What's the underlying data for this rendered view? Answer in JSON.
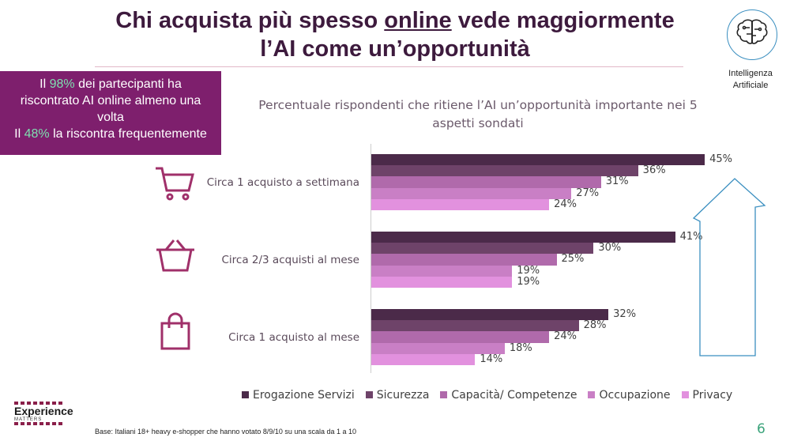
{
  "title": {
    "part1": "Chi acquista più spesso ",
    "underlined": "online",
    "part2": " vede maggiormente",
    "line2": "l’AI come un’opportunità"
  },
  "callout": {
    "l1a": "Il ",
    "l1b": "98%",
    "l1c": " dei partecipanti ha",
    "l2": "riscontrato AI online almeno una",
    "l3": "volta",
    "l4a": "Il ",
    "l4b": "48%",
    "l4c": " la riscontra frequentemente"
  },
  "badge": {
    "icon": "brain-circuit-icon",
    "label1": "Intelligenza",
    "label2": "Artificiale"
  },
  "chart_data": {
    "type": "bar",
    "orientation": "horizontal",
    "title": "Percentuale rispondenti che ritiene l’AI un’opportunità importante nei 5 aspetti sondati",
    "categories": [
      "Circa 1 acquisto a settimana",
      "Circa 2/3 acquisti al mese",
      "Circa 1 acquisto al mese"
    ],
    "category_icons": [
      "shopping-cart-icon",
      "shopping-basket-icon",
      "shopping-bag-icon"
    ],
    "series": [
      {
        "name": "Erogazione Servizi",
        "color": "#4b2a49",
        "values": [
          45,
          41,
          32
        ]
      },
      {
        "name": "Sicurezza",
        "color": "#6e4369",
        "values": [
          36,
          30,
          28
        ]
      },
      {
        "name": "Capacità/ Competenze",
        "color": "#b06aab",
        "values": [
          31,
          25,
          24
        ]
      },
      {
        "name": "Occupazione",
        "color": "#c97fc5",
        "values": [
          27,
          19,
          18
        ]
      },
      {
        "name": "Privacy",
        "color": "#e291de",
        "values": [
          24,
          19,
          14
        ]
      }
    ],
    "value_suffix": "%",
    "legend": "bottom",
    "grid": false,
    "trend_arrow": "up"
  },
  "footer": {
    "base": "Base: Italiani 18+ heavy e-shopper che hanno votato 8/9/10 su una scala da 1 a 10",
    "page": "6",
    "logo": "Experience",
    "logo_sub": "MATTERS"
  }
}
